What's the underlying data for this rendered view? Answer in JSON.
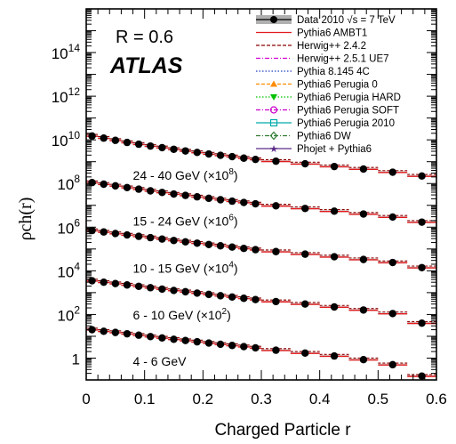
{
  "chart_data": {
    "type": "line",
    "xlabel": "Charged Particle r",
    "ylabel": "ρch(r)",
    "xlim": [
      0,
      0.6
    ],
    "ylim_log10": [
      -1,
      16
    ],
    "log_scale_y": true,
    "x_ticks": [
      "0",
      "0.1",
      "0.2",
      "0.3",
      "0.4",
      "0.5",
      "0.6"
    ],
    "y_ticks": [
      {
        "mant": "10",
        "exp": "14"
      },
      {
        "mant": "10",
        "exp": "12"
      },
      {
        "mant": "10",
        "exp": "10"
      },
      {
        "mant": "10",
        "exp": "8"
      },
      {
        "mant": "10",
        "exp": "6"
      },
      {
        "mant": "10",
        "exp": "4"
      },
      {
        "mant": "10",
        "exp": "2"
      },
      {
        "mant": "1",
        "exp": ""
      }
    ],
    "annotations": {
      "radius": "R = 0.6",
      "experiment": "ATLAS"
    },
    "x": [
      0.01,
      0.03,
      0.05,
      0.07,
      0.09,
      0.11,
      0.13,
      0.15,
      0.17,
      0.19,
      0.21,
      0.23,
      0.25,
      0.27,
      0.29,
      0.325,
      0.375,
      0.425,
      0.475,
      0.525,
      0.575
    ],
    "series": [
      {
        "name": "24 - 40 GeV (×10⁸)",
        "label_main": "24 - 40 GeV (×10",
        "label_exp": "8",
        "label_end": ")",
        "values": [
          15000000000.0,
          12000000000.0,
          9500000000.0,
          7600000000.0,
          6300000000.0,
          5200000000.0,
          4400000000.0,
          3700000000.0,
          3100000000.0,
          2650000000.0,
          2250000000.0,
          1950000000.0,
          1700000000.0,
          1450000000.0,
          1270000000.0,
          1050000000.0,
          800000000.0,
          600000000.0,
          460000000.0,
          330000000.0,
          220000000.0
        ]
      },
      {
        "name": "15 - 24 GeV (×10⁶)",
        "label_main": "15 - 24 GeV (×10",
        "label_exp": "6",
        "label_end": ")",
        "values": [
          110000000.0,
          93000000.0,
          78000000.0,
          65000000.0,
          55000000.0,
          46000000.0,
          39000000.0,
          33000000.0,
          28500000.0,
          24500000.0,
          21000000.0,
          18000000.0,
          15500000.0,
          13500000.0,
          11700000.0,
          9500000.0,
          7200000.0,
          5400000.0,
          4000000.0,
          2900000.0,
          1700000.0
        ]
      },
      {
        "name": "10 - 15 GeV (×10⁴)",
        "label_main": "10 - 15 GeV (×10",
        "label_exp": "4",
        "label_end": ")",
        "values": [
          700000.0,
          600000.0,
          510000.0,
          440000.0,
          380000.0,
          330000.0,
          285000.0,
          245000.0,
          212000.0,
          185000.0,
          160000.0,
          140000.0,
          122000.0,
          106000.0,
          93000.0,
          76000.0,
          58000.0,
          44000.0,
          33000.0,
          24000.0,
          14000.0
        ]
      },
      {
        "name": "6 - 10 GeV (×10²)",
        "label_main": "6 - 10 GeV (×10",
        "label_exp": "2",
        "label_end": ")",
        "values": [
          3500.0,
          3000.0,
          2600.0,
          2250.0,
          1950.0,
          1680.0,
          1450.0,
          1260.0,
          1100.0,
          950,
          830,
          720,
          630,
          550,
          480,
          390,
          300,
          220,
          160,
          110,
          40
        ]
      },
      {
        "name": "4 - 6 GeV",
        "label_main": "4 - 6 GeV",
        "label_exp": "",
        "label_end": "",
        "values": [
          20,
          17,
          15,
          13,
          11.2,
          9.7,
          8.4,
          7.3,
          6.4,
          5.6,
          4.9,
          4.3,
          3.8,
          3.35,
          2.95,
          2.3,
          1.7,
          1.25,
          0.85,
          0.5,
          0.15
        ]
      }
    ],
    "legend": {
      "placement": "top-right",
      "entries": [
        {
          "label": "Data 2010  √s = 7 TeV",
          "color": "#000000",
          "style": "data"
        },
        {
          "label": "Pythia6 AMBT1",
          "color": "#e41a1c",
          "style": "solid"
        },
        {
          "label": "Herwig++ 2.4.2",
          "color": "#8b0000",
          "style": "dash"
        },
        {
          "label": "Herwig++ 2.5.1 UE7",
          "color": "#d400d4",
          "style": "dashdot"
        },
        {
          "label": "Pythia 8.145 4C",
          "color": "#1f3fbf",
          "style": "dot"
        },
        {
          "label": "Pythia6 Perugia 0",
          "color": "#ff8c00",
          "style": "dash-tri"
        },
        {
          "label": "Pythia6 Perugia HARD",
          "color": "#00c000",
          "style": "dot-dtri"
        },
        {
          "label": "Pythia6 Perugia SOFT",
          "color": "#cc00cc",
          "style": "dashdot-circle"
        },
        {
          "label": "Pythia6 Perugia 2010",
          "color": "#00aaaa",
          "style": "solid-square"
        },
        {
          "label": "Pythia6 DW",
          "color": "#2e7d32",
          "style": "dashdot-diamond"
        },
        {
          "label": "Phojet + Pythia6",
          "color": "#5b2a86",
          "style": "solid-star"
        }
      ]
    },
    "colors": {
      "data_band": "#b0b0b0",
      "ambt1": "#e41a1c",
      "herwig": "#8b0000"
    }
  }
}
